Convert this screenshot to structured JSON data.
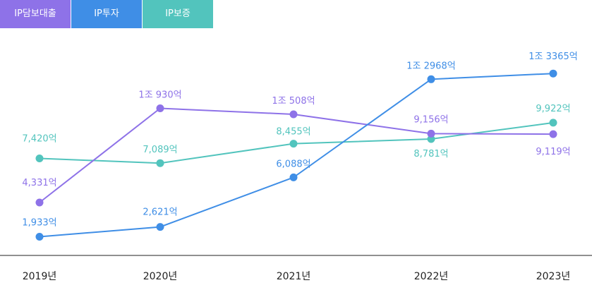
{
  "tabs": [
    {
      "label": "IP담보대출",
      "color": "#8e72e8"
    },
    {
      "label": "IP투자",
      "color": "#3f8ee6"
    },
    {
      "label": "IP보증",
      "color": "#52c4bd"
    }
  ],
  "chart_data": {
    "type": "line",
    "categories": [
      "2019년",
      "2020년",
      "2021년",
      "2022년",
      "2023년"
    ],
    "unit": "억",
    "series": [
      {
        "name": "IP담보대출",
        "color": "#8e72e8",
        "values": [
          4331,
          10930,
          10508,
          9156,
          9119
        ],
        "labels": [
          "4,331억",
          "1조 930억",
          "1조 508억",
          "9,156억",
          "9,119억"
        ]
      },
      {
        "name": "IP투자",
        "color": "#3f8ee6",
        "values": [
          1933,
          2621,
          6088,
          12968,
          13365
        ],
        "labels": [
          "1,933억",
          "2,621억",
          "6,088억",
          "1조 2968억",
          "1조 3365억"
        ]
      },
      {
        "name": "IP보증",
        "color": "#52c4bd",
        "values": [
          7420,
          7089,
          8455,
          8781,
          9922
        ],
        "labels": [
          "7,420억",
          "7,089억",
          "8,455억",
          "8,781억",
          "9,922억"
        ]
      }
    ],
    "grid": false,
    "xaxis_line": true
  }
}
